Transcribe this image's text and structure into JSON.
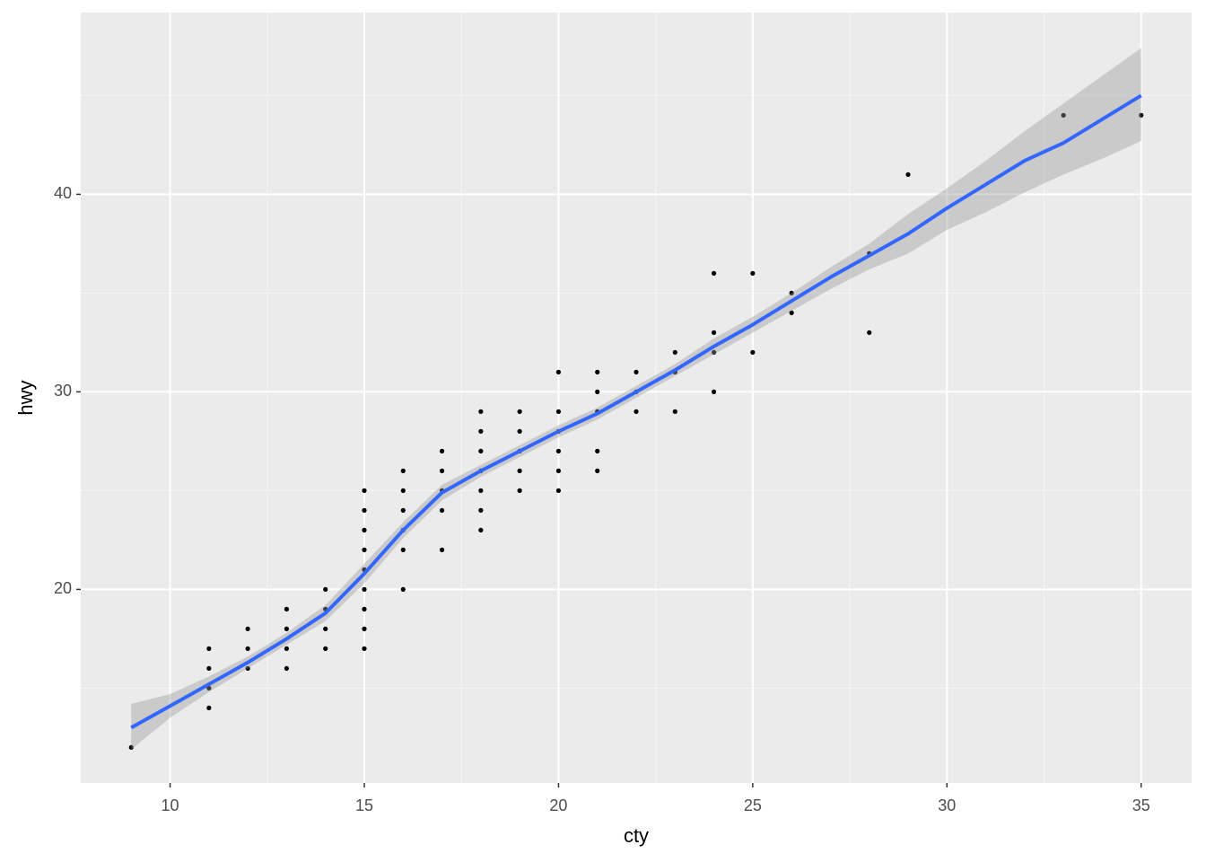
{
  "chart_data": {
    "type": "scatter",
    "xlabel": "cty",
    "ylabel": "hwy",
    "xlim": [
      7.7,
      36.3
    ],
    "ylim": [
      10.2,
      49.2
    ],
    "xticks": [
      10,
      15,
      20,
      25,
      30,
      35
    ],
    "yticks": [
      20,
      30,
      40
    ],
    "xminor": [
      12.5,
      17.5,
      22.5,
      27.5,
      32.5
    ],
    "yminor": [
      15,
      25,
      35,
      45
    ],
    "grid": true,
    "color": "#000000",
    "x": [
      9,
      11,
      11,
      11,
      11,
      12,
      12,
      12,
      13,
      13,
      13,
      13,
      14,
      14,
      14,
      14,
      15,
      15,
      15,
      15,
      15,
      15,
      15,
      15,
      15,
      16,
      16,
      16,
      16,
      16,
      16,
      17,
      17,
      17,
      17,
      17,
      18,
      18,
      18,
      18,
      18,
      18,
      18,
      19,
      19,
      19,
      19,
      19,
      20,
      20,
      20,
      20,
      20,
      20,
      21,
      21,
      21,
      21,
      21,
      22,
      22,
      22,
      23,
      23,
      23,
      24,
      24,
      24,
      24,
      25,
      25,
      26,
      26,
      28,
      28,
      29,
      33,
      35
    ],
    "y": [
      12,
      17,
      16,
      15,
      14,
      18,
      17,
      16,
      19,
      18,
      17,
      16,
      20,
      19,
      18,
      17,
      25,
      24,
      23,
      22,
      21,
      20,
      19,
      18,
      17,
      26,
      25,
      24,
      23,
      22,
      20,
      27,
      26,
      25,
      24,
      22,
      29,
      28,
      27,
      26,
      25,
      24,
      23,
      29,
      28,
      27,
      26,
      25,
      31,
      29,
      28,
      27,
      26,
      25,
      31,
      30,
      29,
      27,
      26,
      31,
      30,
      29,
      32,
      31,
      29,
      36,
      33,
      32,
      30,
      36,
      32,
      35,
      34,
      37,
      33,
      41,
      44,
      44
    ],
    "smooth": {
      "color": "#3366ff",
      "band_color": "#999999",
      "x": [
        9,
        10,
        11,
        12,
        13,
        14,
        15,
        16,
        17,
        18,
        19,
        20,
        21,
        22,
        23,
        24,
        25,
        26,
        27,
        28,
        29,
        30,
        31,
        32,
        33,
        34,
        35
      ],
      "y": [
        13.0,
        14.1,
        15.2,
        16.3,
        17.5,
        18.8,
        20.8,
        23.0,
        24.9,
        26.0,
        27.0,
        28.0,
        28.9,
        30.0,
        31.1,
        32.3,
        33.4,
        34.6,
        35.8,
        36.9,
        38.0,
        39.3,
        40.5,
        41.7,
        42.6,
        43.8,
        45.0
      ],
      "lower": [
        11.9,
        13.5,
        14.8,
        16.0,
        17.2,
        18.4,
        20.3,
        22.6,
        24.5,
        25.7,
        26.7,
        27.7,
        28.6,
        29.7,
        30.8,
        31.9,
        33.0,
        34.1,
        35.2,
        36.2,
        37.0,
        38.2,
        39.1,
        40.1,
        41.0,
        41.8,
        42.7
      ],
      "upper": [
        14.2,
        14.7,
        15.6,
        16.6,
        17.8,
        19.2,
        21.3,
        23.4,
        25.3,
        26.3,
        27.3,
        28.3,
        29.2,
        30.3,
        31.4,
        32.7,
        33.8,
        35.0,
        36.3,
        37.5,
        39.0,
        40.3,
        41.7,
        43.2,
        44.6,
        46.0,
        47.4
      ]
    }
  }
}
